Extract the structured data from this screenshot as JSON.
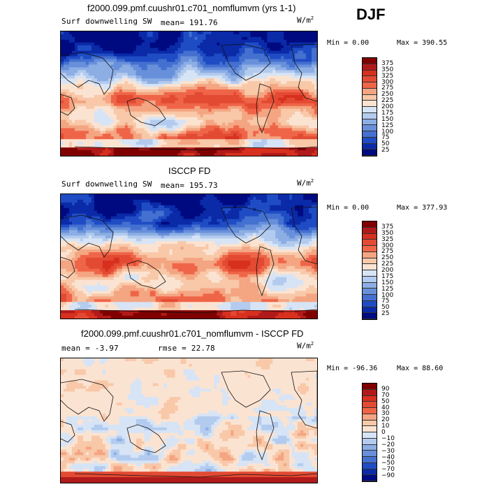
{
  "season": "DJF",
  "panels": [
    {
      "title": "f2000.099.pmf.cuushr01.c701_nomflumvm (yrs 1-1)",
      "variable": "Surf downwelling SW",
      "stat1": "mean=  191.76",
      "stat2": "",
      "units_base": "W/m",
      "units_exp": "2",
      "min_text": "Min =    0.00",
      "max_text": "Max =  390.55",
      "legend": [
        "375",
        "350",
        "325",
        "300",
        "275",
        "250",
        "225",
        "200",
        "175",
        "150",
        "125",
        "100",
        "75",
        "50",
        "25"
      ],
      "colors": [
        "#800000",
        "#b01a1a",
        "#d7301f",
        "#e34a33",
        "#ef6548",
        "#f4a582",
        "#f8c8a8",
        "#fbe3d2",
        "#d6e4f5",
        "#b3cbee",
        "#8caee4",
        "#6890da",
        "#4470d0",
        "#1f4cc4",
        "#0a2aa8",
        "#000a80"
      ],
      "field": "abs"
    },
    {
      "title": "ISCCP FD",
      "variable": "Surf downwelling SW",
      "stat1": "mean=  195.73",
      "stat2": "",
      "units_base": "W/m",
      "units_exp": "2",
      "min_text": "Min =    0.00",
      "max_text": "Max =  377.93",
      "legend": [
        "375",
        "350",
        "325",
        "300",
        "275",
        "250",
        "225",
        "200",
        "175",
        "150",
        "125",
        "100",
        "75",
        "50",
        "25"
      ],
      "colors": [
        "#800000",
        "#b01a1a",
        "#d7301f",
        "#e34a33",
        "#ef6548",
        "#f4a582",
        "#f8c8a8",
        "#fbe3d2",
        "#d6e4f5",
        "#b3cbee",
        "#8caee4",
        "#6890da",
        "#4470d0",
        "#1f4cc4",
        "#0a2aa8",
        "#000a80"
      ],
      "field": "obs"
    },
    {
      "title": "f2000.099.pmf.cuushr01.c701_nomflumvm - ISCCP FD",
      "variable": "",
      "stat1": "mean =   -3.97",
      "stat2": "rmse =   22.78",
      "units_base": "W/m",
      "units_exp": "2",
      "min_text": "Min =  -96.36",
      "max_text": "Max =   88.60",
      "legend": [
        "90",
        "70",
        "50",
        "40",
        "30",
        "20",
        "10",
        "0",
        "−10",
        "−20",
        "−30",
        "−40",
        "−50",
        "−70",
        "−90"
      ],
      "colors": [
        "#800000",
        "#b01a1a",
        "#d7301f",
        "#e34a33",
        "#ef6548",
        "#f4a582",
        "#f8c8a8",
        "#fbe3d2",
        "#d6e4f5",
        "#b3cbee",
        "#8caee4",
        "#6890da",
        "#4470d0",
        "#1f4cc4",
        "#0a2aa8",
        "#000a80"
      ],
      "field": "diff"
    }
  ]
}
